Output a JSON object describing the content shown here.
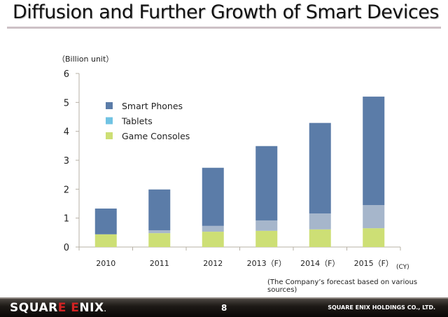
{
  "page": {
    "title": "Diffusion and Further Growth of Smart Devices",
    "note": "(The Company’s forecast based on various sources)",
    "footer": {
      "logo": "SQUARE ENIX",
      "page_number": "8",
      "company": "SQUARE ENIX HOLDINGS CO., LTD."
    }
  },
  "chart_data": {
    "type": "bar",
    "stacked": true,
    "title": "",
    "ylabel": "（Billion unit）",
    "xlabel": "(CY)",
    "ylim": [
      0,
      6
    ],
    "yticks": [
      "0",
      "1",
      "2",
      "3",
      "4",
      "5",
      "6"
    ],
    "categories": [
      "2010",
      "2011",
      "2012",
      "2013（F）",
      "2014（F）",
      "2015（F）"
    ],
    "legend_position": "upper-left inside plot",
    "series": [
      {
        "name": "Game Consoles",
        "color": "#cddf75",
        "legend_color": "#cddf75",
        "values": [
          0.44,
          0.48,
          0.53,
          0.56,
          0.61,
          0.65
        ]
      },
      {
        "name": "Tablets",
        "color": "#a6b6cb",
        "legend_color": "#70c3e3",
        "values": [
          0.0,
          0.1,
          0.2,
          0.36,
          0.55,
          0.8
        ]
      },
      {
        "name": "Smart Phones",
        "color": "#5b7ca8",
        "legend_color": "#5b7ca8",
        "values": [
          0.89,
          1.41,
          2.01,
          2.57,
          3.13,
          3.75
        ]
      }
    ],
    "legend_order": [
      "Smart Phones",
      "Tablets",
      "Game Consoles"
    ],
    "totals": [
      1.33,
      1.99,
      2.74,
      3.49,
      4.29,
      5.2
    ],
    "grid": false
  }
}
